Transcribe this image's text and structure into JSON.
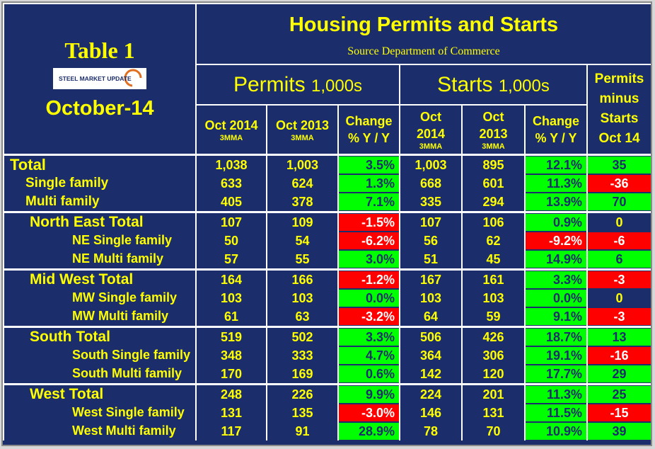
{
  "header": {
    "table_label": "Table 1",
    "logo": "STEEL MARKET UPDATE",
    "period": "October-14",
    "title": "Housing Permits and Starts",
    "source": "Source Department of Commerce"
  },
  "groups": {
    "permits": {
      "name": "Permits",
      "unit": "1,000s"
    },
    "starts": {
      "name": "Starts",
      "unit": "1,000s"
    },
    "difference": [
      "Permits",
      "minus",
      "Starts",
      "Oct 14"
    ]
  },
  "columns": [
    {
      "lines": [
        "Oct 2014"
      ],
      "sub": "3MMA"
    },
    {
      "lines": [
        "Oct 2013"
      ],
      "sub": "3MMA"
    },
    {
      "lines": [
        "Change",
        "% Y / Y"
      ]
    },
    {
      "lines": [
        "Oct",
        "2014"
      ],
      "sub": "3MMA"
    },
    {
      "lines": [
        "Oct",
        "2013"
      ],
      "sub": "3MMA"
    },
    {
      "lines": [
        "Change",
        "% Y / Y"
      ]
    }
  ],
  "national": {
    "total": {
      "label": "Total",
      "cells": [
        "1,038",
        "1,003",
        "3.5%",
        "1,003",
        "895",
        "12.1%",
        "35"
      ]
    },
    "rows": [
      {
        "label": "Single family",
        "cells": [
          "633",
          "624",
          "1.3%",
          "668",
          "601",
          "11.3%",
          "-36"
        ]
      },
      {
        "label": "Multi family",
        "cells": [
          "405",
          "378",
          "7.1%",
          "335",
          "294",
          "13.9%",
          "70"
        ]
      }
    ]
  },
  "regions": [
    {
      "total": {
        "label": "North East Total",
        "cells": [
          "107",
          "109",
          "-1.5%",
          "107",
          "106",
          "0.9%",
          "0"
        ]
      },
      "rows": [
        {
          "label": "NE Single family",
          "cells": [
            "50",
            "54",
            "-6.2%",
            "56",
            "62",
            "-9.2%",
            "-6"
          ]
        },
        {
          "label": "NE Multi family",
          "cells": [
            "57",
            "55",
            "3.0%",
            "51",
            "45",
            "14.9%",
            "6"
          ]
        }
      ]
    },
    {
      "total": {
        "label": "Mid West Total",
        "cells": [
          "164",
          "166",
          "-1.2%",
          "167",
          "161",
          "3.3%",
          "-3"
        ]
      },
      "rows": [
        {
          "label": "MW Single family",
          "cells": [
            "103",
            "103",
            "0.0%",
            "103",
            "103",
            "0.0%",
            "0"
          ]
        },
        {
          "label": "MW Multi family",
          "cells": [
            "61",
            "63",
            "-3.2%",
            "64",
            "59",
            "9.1%",
            "-3"
          ]
        }
      ]
    },
    {
      "total": {
        "label": "South Total",
        "cells": [
          "519",
          "502",
          "3.3%",
          "506",
          "426",
          "18.7%",
          "13"
        ]
      },
      "rows": [
        {
          "label": "South Single family",
          "cells": [
            "348",
            "333",
            "4.7%",
            "364",
            "306",
            "19.1%",
            "-16"
          ]
        },
        {
          "label": "South Multi family",
          "cells": [
            "170",
            "169",
            "0.6%",
            "142",
            "120",
            "17.7%",
            "29"
          ]
        }
      ]
    },
    {
      "total": {
        "label": "West Total",
        "cells": [
          "248",
          "226",
          "9.9%",
          "224",
          "201",
          "11.3%",
          "25"
        ]
      },
      "rows": [
        {
          "label": "West Single family",
          "cells": [
            "131",
            "135",
            "-3.0%",
            "146",
            "131",
            "11.5%",
            "-15"
          ]
        },
        {
          "label": "West Multi family",
          "cells": [
            "117",
            "91",
            "28.9%",
            "78",
            "70",
            "10.9%",
            "39"
          ]
        }
      ]
    }
  ]
}
